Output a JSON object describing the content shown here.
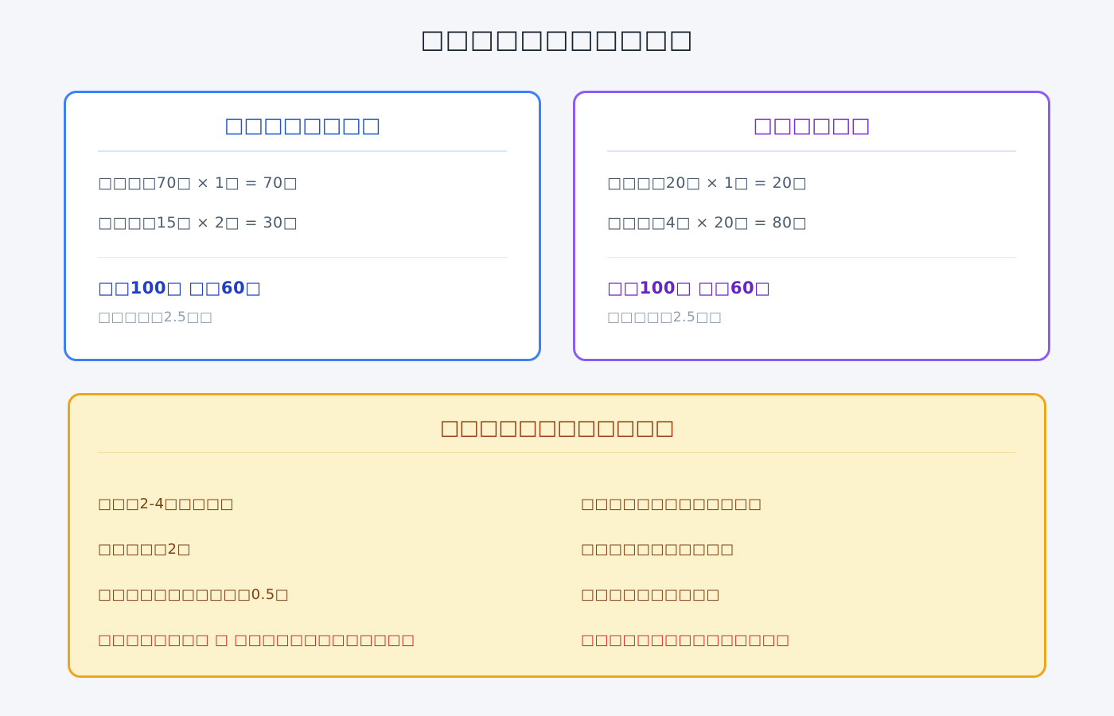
{
  "page": {
    "title": "□□□□□□□□□□□"
  },
  "left_card": {
    "title": "□□□□□□□□",
    "lines": [
      "□□□□70□ × 1□ = 70□",
      "□□□□15□ × 2□ = 30□"
    ],
    "total": "□□100□ □□60□",
    "note": "□□□□□2.5□□"
  },
  "right_card": {
    "title": "□□□□□□",
    "lines": [
      "□□□□20□ × 1□ = 20□",
      "□□□□4□ × 20□ = 80□"
    ],
    "total": "□□100□ □□60□",
    "note": "□□□□□2.5□□"
  },
  "tips_card": {
    "title": "□□□□□□□□□□□□",
    "left_items": [
      "□□□2-4□□□□□",
      "□□□□□2□",
      "□□□□□□□□□□□0.5□",
      "□□□□□□□□ □ □□□□□□□□□□□□□"
    ],
    "right_items": [
      "□□□□□□□□□□□□□",
      "□□□□□□□□□□□",
      "□□□□□□□□□□",
      "□□□□□□□□□□□□□□□"
    ]
  },
  "colors": {
    "page_background": "#f4f6f9",
    "title_text": "#19222f",
    "blue_accent": "#3b82f6",
    "blue_title": "#2455c4",
    "blue_total": "#2140c4",
    "purple_accent": "#8b5cf6",
    "purple_title": "#7431d6",
    "purple_total": "#6526c2",
    "body_text": "#4b5b6e",
    "note_text": "#8e9cae",
    "tips_background": "#fcf3cd",
    "tips_border": "#f0a41c",
    "tips_text": "#7d3f12",
    "tips_title_text": "#963a10",
    "alert_red": "#d92b2b"
  }
}
